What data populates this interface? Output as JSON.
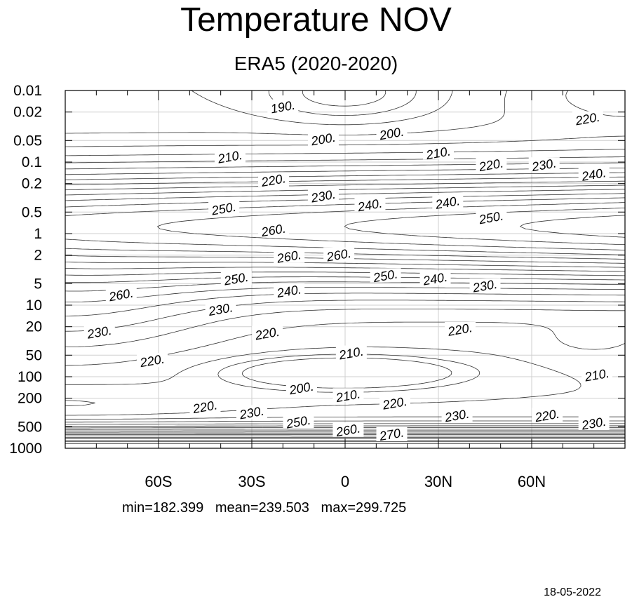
{
  "chart_data": {
    "type": "contour",
    "title": "Temperature NOV",
    "subtitle": "ERA5 (2020-2020)",
    "xlim": [
      -90,
      90
    ],
    "y_scale": "log",
    "y_direction": "decreasing-upward",
    "ylim": [
      1000,
      0.01
    ],
    "x_ticks": [
      {
        "value": -60,
        "label": "60S"
      },
      {
        "value": -30,
        "label": "30S"
      },
      {
        "value": 0,
        "label": "0"
      },
      {
        "value": 30,
        "label": "30N"
      },
      {
        "value": 60,
        "label": "60N"
      }
    ],
    "y_ticks": [
      {
        "value": 0.01,
        "label": "0.01"
      },
      {
        "value": 0.02,
        "label": "0.02"
      },
      {
        "value": 0.05,
        "label": "0.05"
      },
      {
        "value": 0.1,
        "label": "0.1"
      },
      {
        "value": 0.2,
        "label": "0.2"
      },
      {
        "value": 0.5,
        "label": "0.5"
      },
      {
        "value": 1,
        "label": "1"
      },
      {
        "value": 2,
        "label": "2"
      },
      {
        "value": 5,
        "label": "5"
      },
      {
        "value": 10,
        "label": "10"
      },
      {
        "value": 20,
        "label": "20"
      },
      {
        "value": 50,
        "label": "50"
      },
      {
        "value": 100,
        "label": "100"
      },
      {
        "value": 200,
        "label": "200"
      },
      {
        "value": 500,
        "label": "500"
      },
      {
        "value": 1000,
        "label": "1000"
      }
    ],
    "grid": true,
    "contour_interval": 5,
    "contour_labels": [
      {
        "text": "190.",
        "lat": -20,
        "p": 0.017
      },
      {
        "text": "200.",
        "lat": -7,
        "p": 0.048
      },
      {
        "text": "200.",
        "lat": 15,
        "p": 0.04
      },
      {
        "text": "220.",
        "lat": 78,
        "p": 0.025
      },
      {
        "text": "210.",
        "lat": -37,
        "p": 0.085
      },
      {
        "text": "210.",
        "lat": 30,
        "p": 0.075
      },
      {
        "text": "220.",
        "lat": 47,
        "p": 0.11
      },
      {
        "text": "230.",
        "lat": 64,
        "p": 0.11
      },
      {
        "text": "240.",
        "lat": 80,
        "p": 0.15
      },
      {
        "text": "220.",
        "lat": -23,
        "p": 0.18
      },
      {
        "text": "230.",
        "lat": -7,
        "p": 0.3
      },
      {
        "text": "240.",
        "lat": 8,
        "p": 0.4
      },
      {
        "text": "240.",
        "lat": 33,
        "p": 0.37
      },
      {
        "text": "250.",
        "lat": -39,
        "p": 0.45
      },
      {
        "text": "250.",
        "lat": 47,
        "p": 0.6
      },
      {
        "text": "260.",
        "lat": -23,
        "p": 0.9
      },
      {
        "text": "260.",
        "lat": -18,
        "p": 2.1
      },
      {
        "text": "260.",
        "lat": -2,
        "p": 2.0
      },
      {
        "text": "250.",
        "lat": -35,
        "p": 4.3
      },
      {
        "text": "250.",
        "lat": 13,
        "p": 3.9
      },
      {
        "text": "240.",
        "lat": 29,
        "p": 4.3
      },
      {
        "text": "230.",
        "lat": 45,
        "p": 5.4
      },
      {
        "text": "240.",
        "lat": -18,
        "p": 6.4
      },
      {
        "text": "260.",
        "lat": -72,
        "p": 7.2
      },
      {
        "text": "230.",
        "lat": -40,
        "p": 11.5
      },
      {
        "text": "230.",
        "lat": -79,
        "p": 24
      },
      {
        "text": "220.",
        "lat": -25,
        "p": 25
      },
      {
        "text": "220.",
        "lat": 37,
        "p": 22
      },
      {
        "text": "210.",
        "lat": 2,
        "p": 47
      },
      {
        "text": "220.",
        "lat": -62,
        "p": 60
      },
      {
        "text": "210.",
        "lat": 81,
        "p": 95
      },
      {
        "text": "200.",
        "lat": -14,
        "p": 145
      },
      {
        "text": "210.",
        "lat": 1,
        "p": 185
      },
      {
        "text": "220.",
        "lat": 16,
        "p": 235
      },
      {
        "text": "220.",
        "lat": -45,
        "p": 265
      },
      {
        "text": "230.",
        "lat": -30,
        "p": 320
      },
      {
        "text": "230.",
        "lat": 36,
        "p": 350
      },
      {
        "text": "220.",
        "lat": 65,
        "p": 350
      },
      {
        "text": "230.",
        "lat": 80,
        "p": 450
      },
      {
        "text": "250.",
        "lat": -15,
        "p": 430
      },
      {
        "text": "260.",
        "lat": 1,
        "p": 560
      },
      {
        "text": "270.",
        "lat": 15,
        "p": 640
      }
    ]
  },
  "stats": {
    "text": "min=182.399   mean=239.503   max=299.725"
  },
  "footer": {
    "date": "18-05-2022"
  }
}
